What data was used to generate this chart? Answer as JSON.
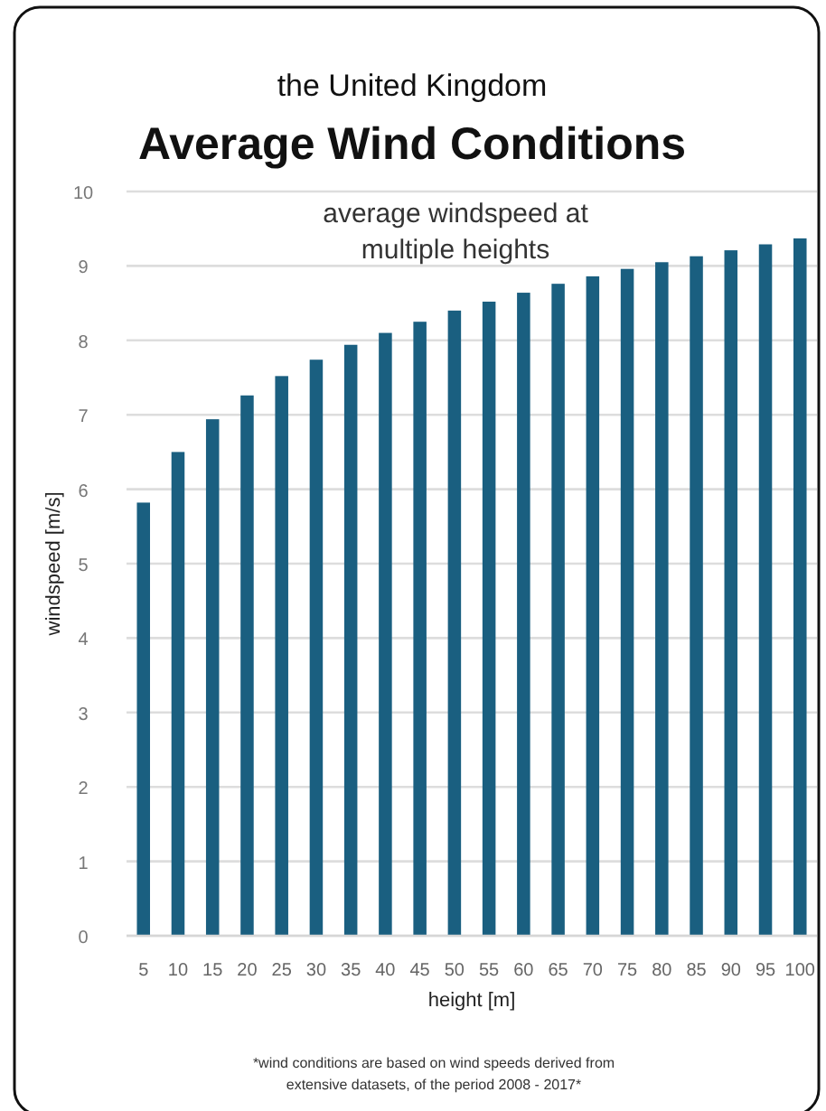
{
  "chart_data": {
    "type": "bar",
    "title": "Average Wind Conditions",
    "subtitle": "the United Kingdom",
    "xlabel": "height [m]",
    "ylabel": "windspeed [m/s]",
    "categories": [
      "5",
      "10",
      "15",
      "20",
      "25",
      "30",
      "35",
      "40",
      "45",
      "50",
      "55",
      "60",
      "65",
      "70",
      "75",
      "80",
      "85",
      "90",
      "95",
      "100"
    ],
    "values": [
      5.82,
      6.5,
      6.94,
      7.26,
      7.52,
      7.74,
      7.94,
      8.1,
      8.25,
      8.4,
      8.52,
      8.64,
      8.76,
      8.86,
      8.96,
      9.05,
      9.13,
      9.21,
      9.29,
      9.37
    ],
    "color": "#1a5f80",
    "ylim": [
      0,
      10
    ],
    "yticks": [
      0,
      1,
      2,
      3,
      4,
      5,
      6,
      7,
      8,
      9,
      10
    ],
    "grid": "y",
    "annotations": [
      "average windspeed at\nmultiple heights",
      "*wind conditions are based on wind speeds derived from\nextensive datasets, of the period 2008 - 2017*"
    ]
  }
}
